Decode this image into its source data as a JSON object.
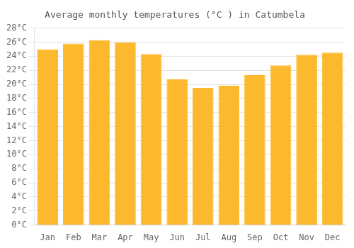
{
  "chart_data": {
    "type": "bar",
    "title": "Average monthly temperatures (°C ) in Catumbela",
    "categories": [
      "Jan",
      "Feb",
      "Mar",
      "Apr",
      "May",
      "Jun",
      "Jul",
      "Aug",
      "Sep",
      "Oct",
      "Nov",
      "Dec"
    ],
    "values": [
      25.0,
      25.8,
      26.3,
      26.0,
      24.3,
      20.7,
      19.5,
      19.8,
      21.3,
      22.7,
      24.2,
      24.5
    ],
    "color": "#FDB92E",
    "ylim": [
      0,
      28
    ],
    "yticks": [
      {
        "value": 0,
        "label": "0°C"
      },
      {
        "value": 2,
        "label": "2°C"
      },
      {
        "value": 4,
        "label": "4°C"
      },
      {
        "value": 6,
        "label": "6°C"
      },
      {
        "value": 8,
        "label": "8°C"
      },
      {
        "value": 10,
        "label": "10°C"
      },
      {
        "value": 12,
        "label": "12°C"
      },
      {
        "value": 14,
        "label": "14°C"
      },
      {
        "value": 16,
        "label": "16°C"
      },
      {
        "value": 18,
        "label": "18°C"
      },
      {
        "value": 20,
        "label": "20°C"
      },
      {
        "value": 22,
        "label": "22°C"
      },
      {
        "value": 24,
        "label": "24°C"
      },
      {
        "value": 26,
        "label": "26°C"
      },
      {
        "value": 28,
        "label": "28°C"
      }
    ],
    "grid": true
  }
}
